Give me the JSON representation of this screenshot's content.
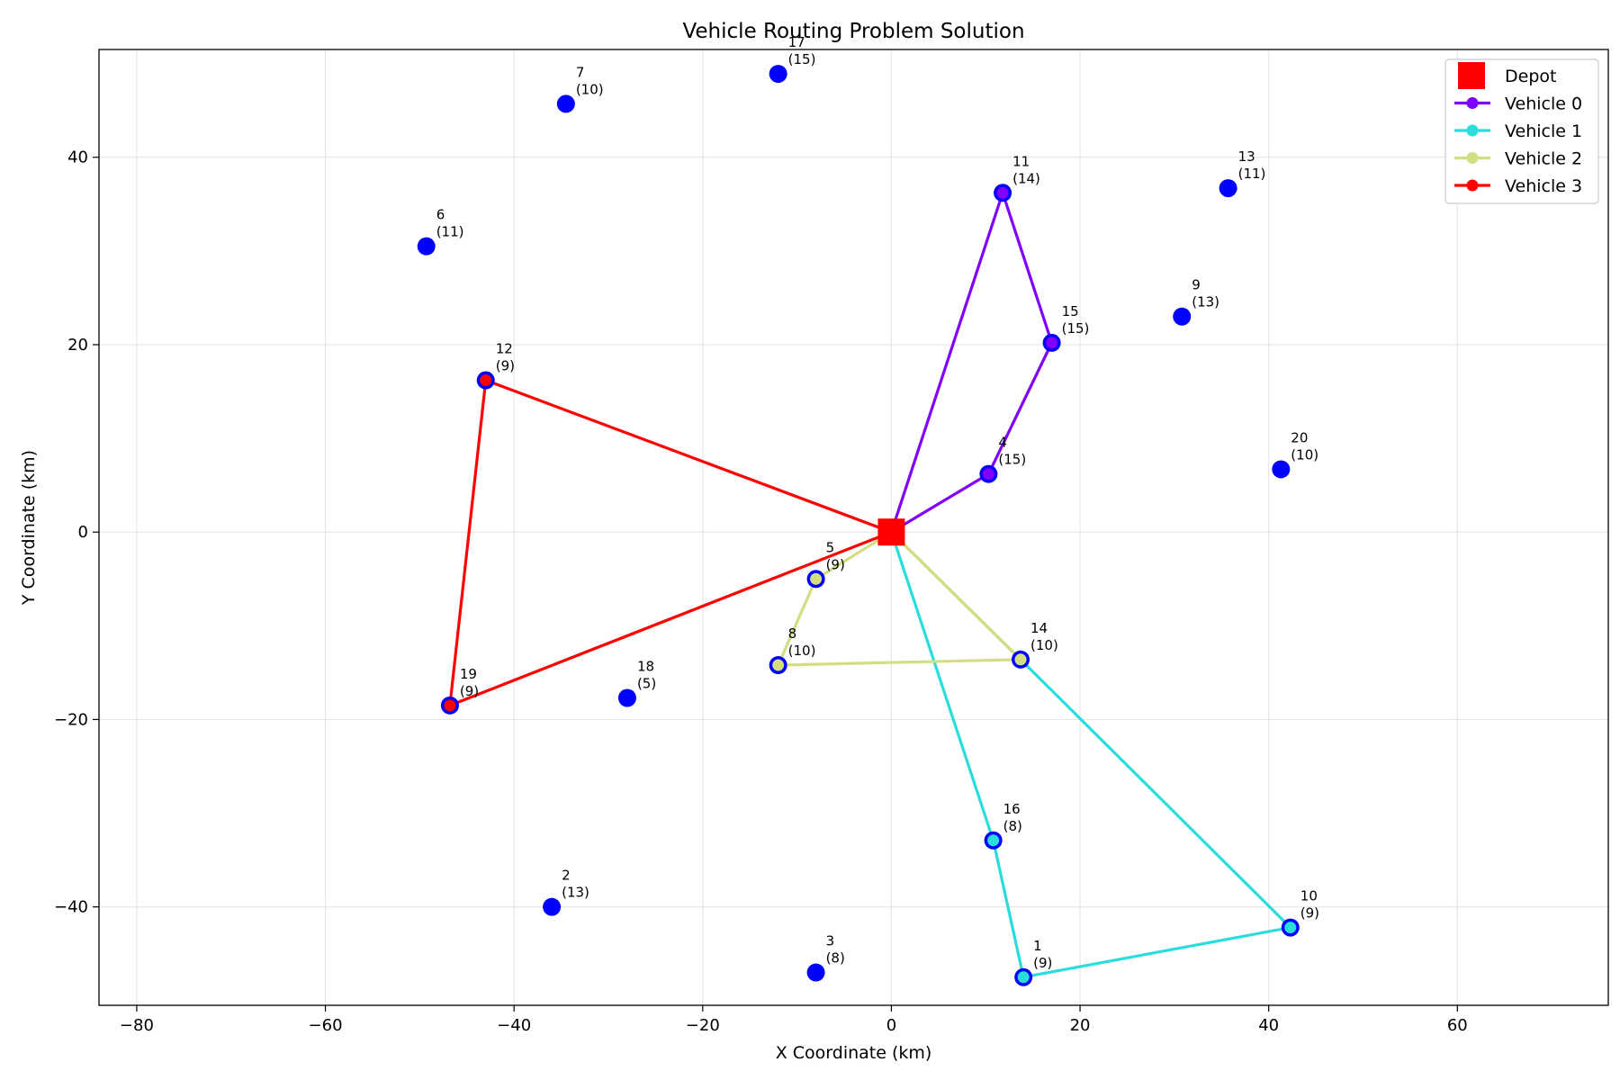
{
  "chart_data": {
    "type": "scatter",
    "title": "Vehicle Routing Problem Solution",
    "xlabel": "X Coordinate (km)",
    "ylabel": "Y Coordinate (km)",
    "xlim": [
      -84,
      76
    ],
    "ylim": [
      -50.5,
      51.5
    ],
    "xticks": [
      -80,
      -60,
      -40,
      -20,
      0,
      20,
      40,
      60
    ],
    "yticks": [
      -40,
      -20,
      0,
      20,
      40
    ],
    "grid": true,
    "legend_position": "top-right",
    "depot": {
      "name": "Depot",
      "x": 0,
      "y": 0,
      "color": "#ff0000"
    },
    "customer_color": "#0000ff",
    "customers": [
      {
        "id": "1",
        "demand": "(9)",
        "x": 14.0,
        "y": -47.5
      },
      {
        "id": "2",
        "demand": "(13)",
        "x": -36.0,
        "y": -40.0
      },
      {
        "id": "3",
        "demand": "(8)",
        "x": -8.0,
        "y": -47.0
      },
      {
        "id": "4",
        "demand": "(15)",
        "x": 10.3,
        "y": 6.2
      },
      {
        "id": "5",
        "demand": "(9)",
        "x": -8.0,
        "y": -5.0
      },
      {
        "id": "6",
        "demand": "(11)",
        "x": -49.3,
        "y": 30.5
      },
      {
        "id": "7",
        "demand": "(10)",
        "x": -34.5,
        "y": 45.7
      },
      {
        "id": "8",
        "demand": "(10)",
        "x": -12.0,
        "y": -14.2
      },
      {
        "id": "9",
        "demand": "(13)",
        "x": 30.8,
        "y": 23.0
      },
      {
        "id": "10",
        "demand": "(9)",
        "x": 42.3,
        "y": -42.2
      },
      {
        "id": "11",
        "demand": "(14)",
        "x": 11.8,
        "y": 36.2
      },
      {
        "id": "12",
        "demand": "(9)",
        "x": -43.0,
        "y": 16.2
      },
      {
        "id": "13",
        "demand": "(11)",
        "x": 35.7,
        "y": 36.7
      },
      {
        "id": "14",
        "demand": "(10)",
        "x": 13.7,
        "y": -13.6
      },
      {
        "id": "15",
        "demand": "(15)",
        "x": 17.0,
        "y": 20.2
      },
      {
        "id": "16",
        "demand": "(8)",
        "x": 10.8,
        "y": -32.9
      },
      {
        "id": "17",
        "demand": "(15)",
        "x": -12.0,
        "y": 48.9
      },
      {
        "id": "18",
        "demand": "(5)",
        "x": -28.0,
        "y": -17.7
      },
      {
        "id": "19",
        "demand": "(9)",
        "x": -46.8,
        "y": -18.5
      },
      {
        "id": "20",
        "demand": "(10)",
        "x": 41.3,
        "y": 6.7
      }
    ],
    "series": [
      {
        "name": "Vehicle 0",
        "color": "#7f00ff",
        "route": [
          "depot",
          "11",
          "15",
          "4",
          "depot"
        ]
      },
      {
        "name": "Vehicle 1",
        "color": "#2adddd",
        "route": [
          "depot",
          "16",
          "1",
          "10",
          "14",
          "depot"
        ]
      },
      {
        "name": "Vehicle 2",
        "color": "#d4dd80",
        "route": [
          "depot",
          "5",
          "8",
          "14",
          "depot"
        ]
      },
      {
        "name": "Vehicle 3",
        "color": "#ff0000",
        "route": [
          "depot",
          "19",
          "12",
          "depot"
        ]
      }
    ]
  }
}
